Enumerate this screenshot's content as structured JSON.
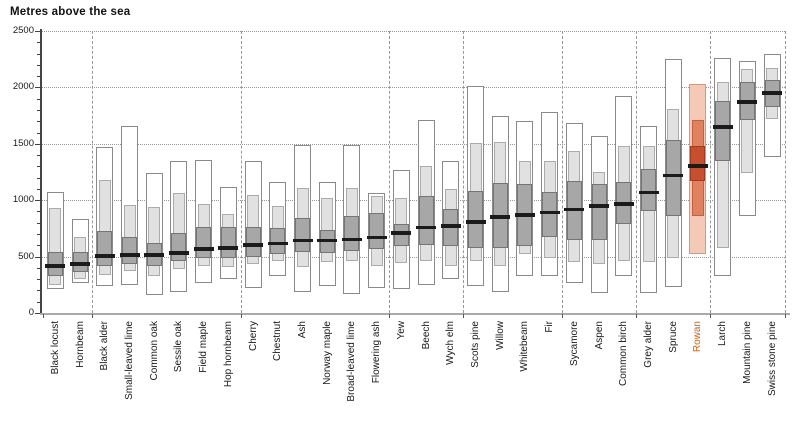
{
  "title": "Metres above the sea",
  "colors": {
    "box_outer_fill": "#ffffff",
    "box_outer_border": "#8a8a8a",
    "box_mid_fill": "#e1e1e1",
    "box_mid_border": "#ababab",
    "box_inner_fill": "#a7a7a7",
    "box_inner_border": "#757575",
    "median": "#1b1b1b",
    "highlight_outer_fill": "#f4cab6",
    "highlight_outer_border": "#d09a82",
    "highlight_mid_fill": "#e0815f",
    "highlight_mid_border": "#c4603c",
    "highlight_inner_fill": "#c84f2e",
    "highlight_inner_border": "#9e3c20",
    "highlight_label": "#c8641e",
    "grid": "#999999",
    "x_axis": "#aaaaaa",
    "y_axis": "#444444",
    "text": "#1a1a1a"
  },
  "chart_data": {
    "type": "range-box",
    "title": "Metres above the sea",
    "ylabel": "Metres above the sea",
    "ylim": [
      0,
      2500
    ],
    "yticks": [
      0,
      500,
      1000,
      1500,
      2000,
      2500
    ],
    "minor_tick_step": 100,
    "grid": "horizontal-dotted",
    "legend": "none",
    "group_sizes": [
      2,
      6,
      6,
      3,
      4,
      3,
      3,
      3
    ],
    "series_note": "full_range = outer white box, common_range = light grey box, core_range = dark grey box, median = black bar; all values metres above sea level",
    "series": [
      {
        "name": "Black locust",
        "full_range": [
          210,
          1070
        ],
        "common_range": [
          250,
          930
        ],
        "core_range": [
          330,
          545
        ],
        "median": 415,
        "highlight": false
      },
      {
        "name": "Hornbeam",
        "full_range": [
          270,
          830
        ],
        "common_range": [
          300,
          670
        ],
        "core_range": [
          360,
          545
        ],
        "median": 430,
        "highlight": false
      },
      {
        "name": "Black alder",
        "full_range": [
          240,
          1470
        ],
        "common_range": [
          340,
          1180
        ],
        "core_range": [
          420,
          730
        ],
        "median": 505,
        "highlight": false
      },
      {
        "name": "Small-leaved lime",
        "full_range": [
          250,
          1660
        ],
        "common_range": [
          370,
          960
        ],
        "core_range": [
          430,
          675
        ],
        "median": 510,
        "highlight": false
      },
      {
        "name": "Common oak",
        "full_range": [
          160,
          1240
        ],
        "common_range": [
          330,
          940
        ],
        "core_range": [
          420,
          625
        ],
        "median": 510,
        "highlight": false
      },
      {
        "name": "Sessile oak",
        "full_range": [
          190,
          1350
        ],
        "common_range": [
          390,
          1060
        ],
        "core_range": [
          460,
          710
        ],
        "median": 530,
        "highlight": false
      },
      {
        "name": "Field maple",
        "full_range": [
          270,
          1360
        ],
        "common_range": [
          420,
          970
        ],
        "core_range": [
          490,
          760
        ],
        "median": 565,
        "highlight": false
      },
      {
        "name": "Hop hornbeam",
        "full_range": [
          300,
          1120
        ],
        "common_range": [
          410,
          880
        ],
        "core_range": [
          490,
          760
        ],
        "median": 575,
        "highlight": false
      },
      {
        "name": "Cherry",
        "full_range": [
          220,
          1350
        ],
        "common_range": [
          430,
          1050
        ],
        "core_range": [
          500,
          760
        ],
        "median": 600,
        "highlight": false
      },
      {
        "name": "Chestnut",
        "full_range": [
          330,
          1160
        ],
        "common_range": [
          460,
          950
        ],
        "core_range": [
          520,
          750
        ],
        "median": 615,
        "highlight": false
      },
      {
        "name": "Ash",
        "full_range": [
          190,
          1490
        ],
        "common_range": [
          410,
          1110
        ],
        "core_range": [
          540,
          840
        ],
        "median": 640,
        "highlight": false
      },
      {
        "name": "Norway maple",
        "full_range": [
          240,
          1160
        ],
        "common_range": [
          450,
          1020
        ],
        "core_range": [
          530,
          740
        ],
        "median": 640,
        "highlight": false
      },
      {
        "name": "Broad-leaved lime",
        "full_range": [
          170,
          1490
        ],
        "common_range": [
          460,
          1110
        ],
        "core_range": [
          550,
          860
        ],
        "median": 650,
        "highlight": false
      },
      {
        "name": "Flowering ash",
        "full_range": [
          220,
          1060
        ],
        "common_range": [
          420,
          1040
        ],
        "core_range": [
          570,
          890
        ],
        "median": 665,
        "highlight": false
      },
      {
        "name": "Yew",
        "full_range": [
          210,
          1270
        ],
        "common_range": [
          440,
          1020
        ],
        "core_range": [
          590,
          790
        ],
        "median": 705,
        "highlight": false
      },
      {
        "name": "Beech",
        "full_range": [
          250,
          1710
        ],
        "common_range": [
          460,
          1300
        ],
        "core_range": [
          600,
          1040
        ],
        "median": 755,
        "highlight": false
      },
      {
        "name": "Wych elm",
        "full_range": [
          300,
          1350
        ],
        "common_range": [
          420,
          1100
        ],
        "core_range": [
          590,
          920
        ],
        "median": 770,
        "highlight": false
      },
      {
        "name": "Scots pine",
        "full_range": [
          240,
          2010
        ],
        "common_range": [
          460,
          1510
        ],
        "core_range": [
          580,
          1080
        ],
        "median": 805,
        "highlight": false
      },
      {
        "name": "Willow",
        "full_range": [
          190,
          1750
        ],
        "common_range": [
          420,
          1520
        ],
        "core_range": [
          580,
          1150
        ],
        "median": 850,
        "highlight": false
      },
      {
        "name": "Whitebeam",
        "full_range": [
          330,
          1700
        ],
        "common_range": [
          520,
          1350
        ],
        "core_range": [
          590,
          1140
        ],
        "median": 865,
        "highlight": false
      },
      {
        "name": "Fir",
        "full_range": [
          330,
          1780
        ],
        "common_range": [
          490,
          1350
        ],
        "core_range": [
          670,
          1070
        ],
        "median": 890,
        "highlight": false
      },
      {
        "name": "Sycamore",
        "full_range": [
          270,
          1680
        ],
        "common_range": [
          450,
          1440
        ],
        "core_range": [
          650,
          1170
        ],
        "median": 915,
        "highlight": false
      },
      {
        "name": "Aspen",
        "full_range": [
          180,
          1570
        ],
        "common_range": [
          430,
          1250
        ],
        "core_range": [
          650,
          1140
        ],
        "median": 945,
        "highlight": false
      },
      {
        "name": "Common birch",
        "full_range": [
          330,
          1920
        ],
        "common_range": [
          460,
          1480
        ],
        "core_range": [
          790,
          1160
        ],
        "median": 965,
        "highlight": false
      },
      {
        "name": "Grey alder",
        "full_range": [
          180,
          1660
        ],
        "common_range": [
          450,
          1480
        ],
        "core_range": [
          900,
          1280
        ],
        "median": 1065,
        "highlight": false
      },
      {
        "name": "Spruce",
        "full_range": [
          230,
          2250
        ],
        "common_range": [
          490,
          1810
        ],
        "core_range": [
          860,
          1530
        ],
        "median": 1215,
        "highlight": false
      },
      {
        "name": "Rowan",
        "full_range": [
          520,
          2030
        ],
        "common_range": [
          860,
          1710
        ],
        "core_range": [
          1170,
          1480
        ],
        "median": 1300,
        "highlight": true
      },
      {
        "name": "Larch",
        "full_range": [
          330,
          2260
        ],
        "common_range": [
          580,
          2050
        ],
        "core_range": [
          1350,
          1880
        ],
        "median": 1645,
        "highlight": false
      },
      {
        "name": "Mountain pine",
        "full_range": [
          860,
          2230
        ],
        "common_range": [
          1240,
          2160
        ],
        "core_range": [
          1710,
          2050
        ],
        "median": 1870,
        "highlight": false
      },
      {
        "name": "Swiss stone pine",
        "full_range": [
          1380,
          2300
        ],
        "common_range": [
          1720,
          2170
        ],
        "core_range": [
          1830,
          2070
        ],
        "median": 1950,
        "highlight": false
      }
    ]
  }
}
